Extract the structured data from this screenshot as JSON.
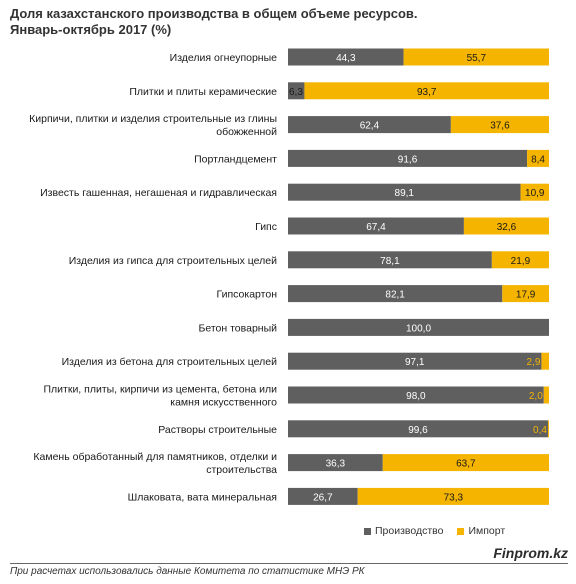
{
  "title_line1": "Доля казахстанского производства в общем объеме ресурсов.",
  "title_line2": "Январь-октябрь 2017 (%)",
  "legend": {
    "production": "Производство",
    "import": "Импорт"
  },
  "source_brand": "Finprom.kz",
  "footnote": "При расчетах использовались данные Комитета по статистике МНЭ РК",
  "colors": {
    "production": "#5f5f5f",
    "import": "#f4b400",
    "label_light": "#ffffff",
    "label_dark": "#1a1a1a",
    "label_accent": "#f4b400"
  },
  "chart_data": {
    "type": "bar",
    "orientation": "horizontal",
    "stacked": true,
    "categories": [
      [
        "Изделия огнеупорные"
      ],
      [
        "Плитки и плиты керамические"
      ],
      [
        "Кирпичи, плитки и изделия строительные из глины",
        "обожженной"
      ],
      [
        "Портландцемент"
      ],
      [
        "Известь гашенная, негашеная и гидравлическая"
      ],
      [
        "Гипс"
      ],
      [
        "Изделия из гипса для строительных целей"
      ],
      [
        "Гипсокартон"
      ],
      [
        "Бетон товарный"
      ],
      [
        "Изделия из бетона для строительных целей"
      ],
      [
        "Плитки, плиты, кирпичи из цемента, бетона или",
        "камня искусственного"
      ],
      [
        "Растворы строительные"
      ],
      [
        "Камень обработанный для памятников, отделки и",
        "строительства"
      ],
      [
        "Шлаковата, вата минеральная"
      ]
    ],
    "series": [
      {
        "name": "Производство",
        "values": [
          44.3,
          6.3,
          62.4,
          91.6,
          89.1,
          67.4,
          78.1,
          82.1,
          100.0,
          97.1,
          98.0,
          99.6,
          36.3,
          26.7
        ],
        "labels": [
          "44,3",
          "6,3",
          "62,4",
          "91,6",
          "89,1",
          "67,4",
          "78,1",
          "82,1",
          "100,0",
          "97,1",
          "98,0",
          "99,6",
          "36,3",
          "26,7"
        ]
      },
      {
        "name": "Импорт",
        "values": [
          55.7,
          93.7,
          37.6,
          8.4,
          10.9,
          32.6,
          21.9,
          17.9,
          0,
          2.9,
          2.0,
          0.4,
          63.7,
          73.3
        ],
        "labels": [
          "55,7",
          "93,7",
          "37,6",
          "8,4",
          "10,9",
          "32,6",
          "21,9",
          "17,9",
          "",
          "2,9",
          "2,0",
          "0,4",
          "63,7",
          "73,3"
        ]
      }
    ],
    "xlim": [
      0,
      100
    ],
    "grid": false,
    "legend_position": "bottom"
  }
}
